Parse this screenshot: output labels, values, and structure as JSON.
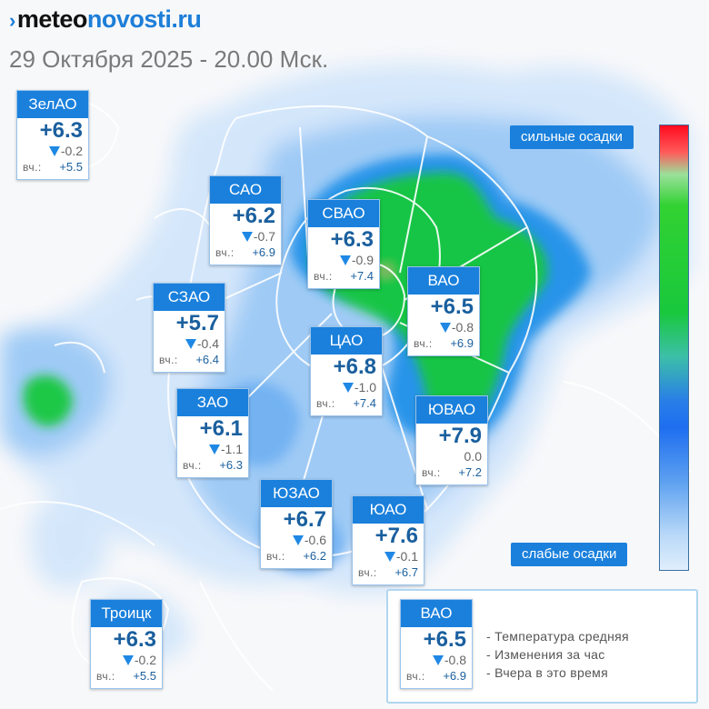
{
  "header": {
    "logo_meteo": "meteo",
    "logo_novosti": "novosti.ru",
    "datetime": "29 Октября 2025 - 20.00 Мск."
  },
  "scale": {
    "top_label": "сильные осадки",
    "bottom_label": "слабые осадки"
  },
  "districts": [
    {
      "name": "ЗелАО",
      "temp": "+6.3",
      "change": "-0.2",
      "yesterday_label": "вч.:",
      "yesterday": "+5.5"
    },
    {
      "name": "САО",
      "temp": "+6.2",
      "change": "-0.7",
      "yesterday_label": "вч.:",
      "yesterday": "+6.9"
    },
    {
      "name": "СВАО",
      "temp": "+6.3",
      "change": "-0.9",
      "yesterday_label": "вч.:",
      "yesterday": "+7.4"
    },
    {
      "name": "ВАО",
      "temp": "+6.5",
      "change": "-0.8",
      "yesterday_label": "вч.:",
      "yesterday": "+6.9"
    },
    {
      "name": "СЗАО",
      "temp": "+5.7",
      "change": "-0.4",
      "yesterday_label": "вч.:",
      "yesterday": "+6.4"
    },
    {
      "name": "ЦАО",
      "temp": "+6.8",
      "change": "-1.0",
      "yesterday_label": "вч.:",
      "yesterday": "+7.4"
    },
    {
      "name": "ЗАО",
      "temp": "+6.1",
      "change": "-1.1",
      "yesterday_label": "вч.:",
      "yesterday": "+6.3"
    },
    {
      "name": "ЮВАО",
      "temp": "+7.9",
      "change": "0.0",
      "yesterday_label": "вч.:",
      "yesterday": "+7.2"
    },
    {
      "name": "ЮЗАО",
      "temp": "+6.7",
      "change": "-0.6",
      "yesterday_label": "вч.:",
      "yesterday": "+6.2"
    },
    {
      "name": "ЮАО",
      "temp": "+7.6",
      "change": "-0.1",
      "yesterday_label": "вч.:",
      "yesterday": "+6.7"
    },
    {
      "name": "Троицк",
      "temp": "+6.3",
      "change": "-0.2",
      "yesterday_label": "вч.:",
      "yesterday": "+5.5"
    }
  ],
  "legend": {
    "sample": {
      "name": "ВАО",
      "temp": "+6.5",
      "change": "-0.8",
      "yesterday_label": "вч.:",
      "yesterday": "+6.9"
    },
    "line1": "- Температура средняя",
    "line2": "- Изменения за час",
    "line3": "- Вчера в это время"
  },
  "colors": {
    "brand_blue": "#1a80dc",
    "heavy_precip": "#ff0a1e",
    "moderate_precip": "#19c83c",
    "light_precip": "#1e6ef0"
  }
}
